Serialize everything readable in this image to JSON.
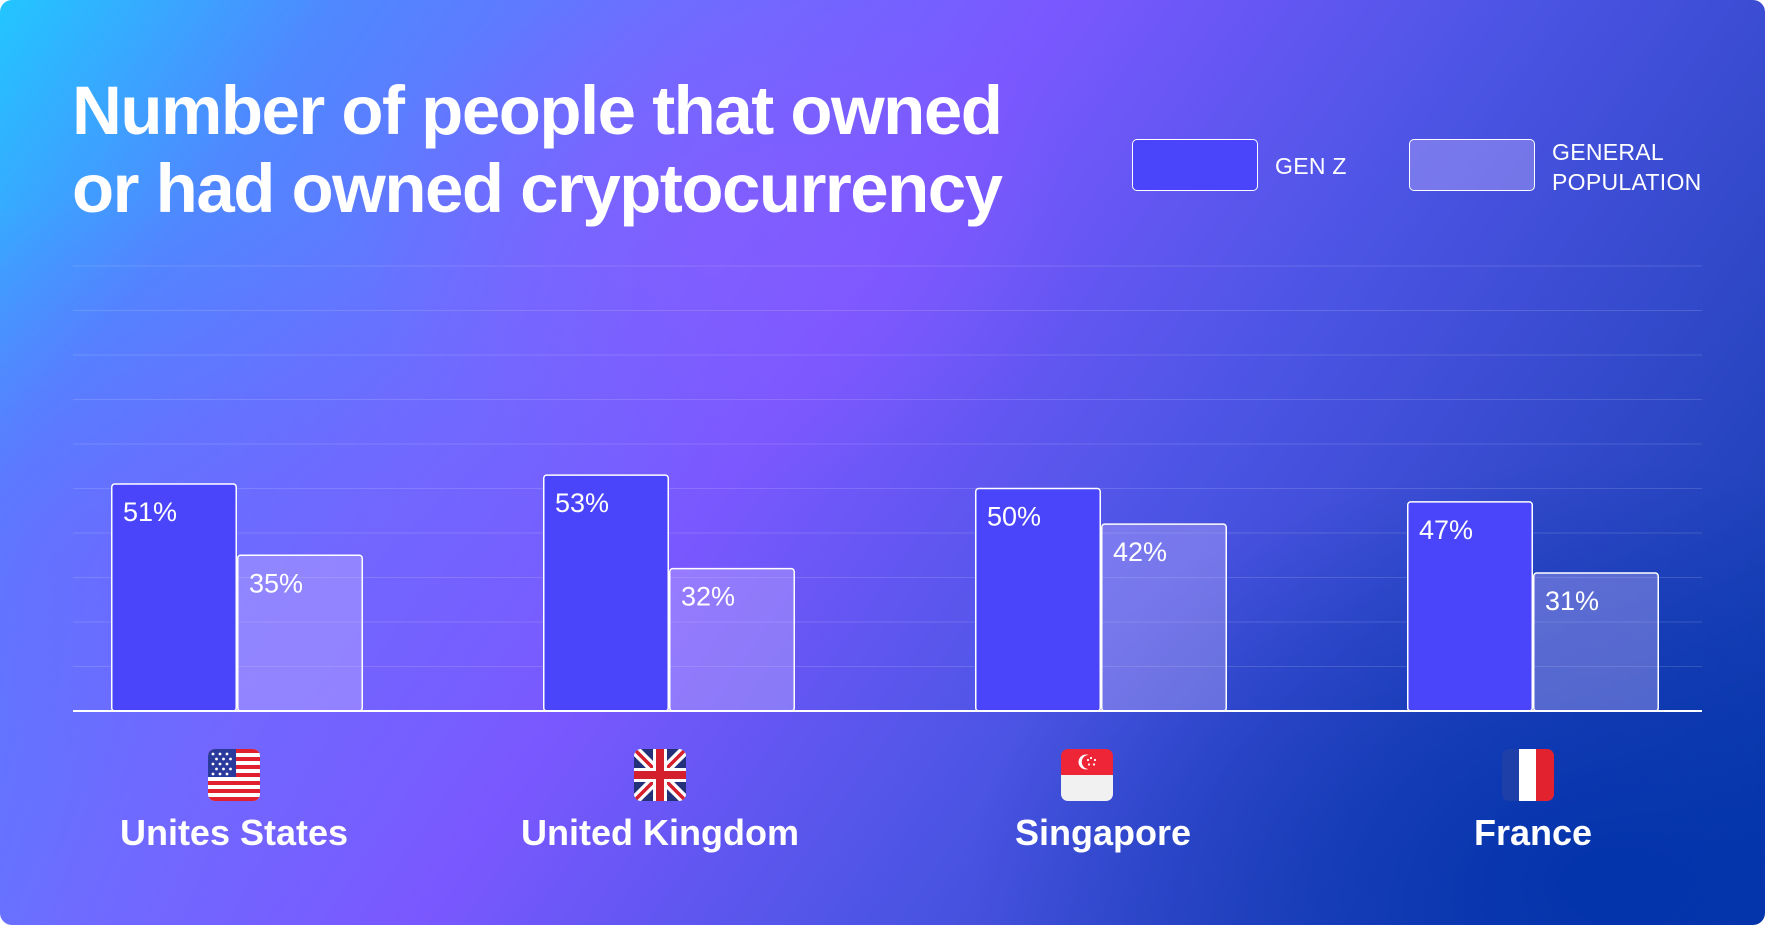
{
  "title": {
    "line1": "Number of people that owned",
    "line2": "or had owned cryptocurrency"
  },
  "legend": {
    "gen_z": "GEN Z",
    "general_population_line1": "GENERAL",
    "general_population_line2": "POPULATION"
  },
  "colors": {
    "gen_z": "#4a44fb",
    "general_population": "rgba(205,190,255,0.35)"
  },
  "chart_data": {
    "type": "bar",
    "title": "Number of people that owned or had owned cryptocurrency",
    "categories": [
      "Unites States",
      "United Kingdom",
      "Singapore",
      "France"
    ],
    "series": [
      {
        "name": "GEN Z",
        "values": [
          51,
          53,
          50,
          47
        ],
        "labels": [
          "51%",
          "53%",
          "50%",
          "47%"
        ]
      },
      {
        "name": "GENERAL POPULATION",
        "values": [
          35,
          32,
          42,
          31
        ],
        "labels": [
          "35%",
          "32%",
          "42%",
          "31%"
        ]
      }
    ],
    "unit": "%",
    "ylim": [
      0,
      100
    ],
    "grid": true,
    "legend_position": "top-right",
    "flag_icons": [
      "us-flag-icon",
      "uk-flag-icon",
      "singapore-flag-icon",
      "france-flag-icon"
    ]
  }
}
